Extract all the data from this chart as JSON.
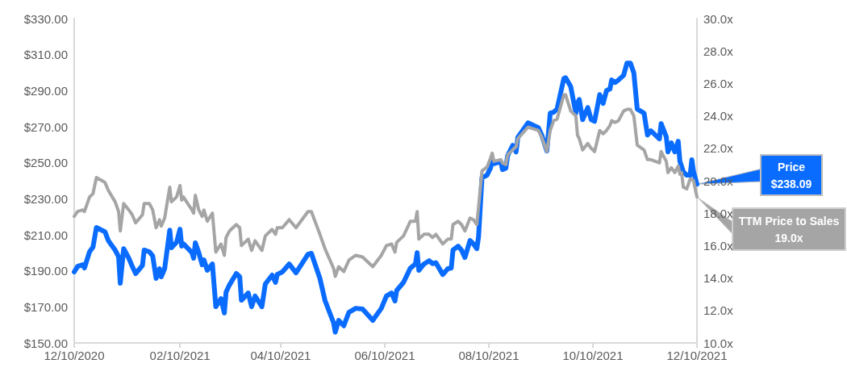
{
  "chart_data": {
    "type": "line",
    "x": [
      "2020-12-10",
      "2020-12-12",
      "2020-12-15",
      "2020-12-16",
      "2020-12-19",
      "2020-12-21",
      "2020-12-23",
      "2020-12-28",
      "2020-12-30",
      "2021-01-03",
      "2021-01-05",
      "2021-01-06",
      "2021-01-08",
      "2021-01-11",
      "2021-01-13",
      "2021-01-15",
      "2021-01-19",
      "2021-01-20",
      "2021-01-23",
      "2021-01-25",
      "2021-01-27",
      "2021-01-29",
      "2021-01-30",
      "2021-02-01",
      "2021-02-04",
      "2021-02-05",
      "2021-02-08",
      "2021-02-10",
      "2021-02-11",
      "2021-02-12",
      "2021-02-17",
      "2021-02-18",
      "2021-02-19",
      "2021-02-21",
      "2021-02-23",
      "2021-02-24",
      "2021-02-26",
      "2021-03-01",
      "2021-03-03",
      "2021-03-06",
      "2021-03-08",
      "2021-03-09",
      "2021-03-11",
      "2021-03-15",
      "2021-03-17",
      "2021-03-18",
      "2021-03-22",
      "2021-03-24",
      "2021-03-26",
      "2021-03-30",
      "2021-04-01",
      "2021-04-05",
      "2021-04-07",
      "2021-04-08",
      "2021-04-11",
      "2021-04-15",
      "2021-04-19",
      "2021-04-26",
      "2021-04-28",
      "2021-05-03",
      "2021-05-06",
      "2021-05-11",
      "2021-05-12",
      "2021-05-14",
      "2021-05-17",
      "2021-05-20",
      "2021-05-24",
      "2021-05-28",
      "2021-06-03",
      "2021-06-08",
      "2021-06-11",
      "2021-06-14",
      "2021-06-16",
      "2021-06-17",
      "2021-06-21",
      "2021-06-25",
      "2021-06-28",
      "2021-06-29",
      "2021-06-30",
      "2021-07-03",
      "2021-07-06",
      "2021-07-08",
      "2021-07-10",
      "2021-07-14",
      "2021-07-17",
      "2021-07-19",
      "2021-07-20",
      "2021-07-23",
      "2021-07-25",
      "2021-07-27",
      "2021-07-30",
      "2021-08-01",
      "2021-08-03",
      "2021-08-04",
      "2021-08-06",
      "2021-08-09",
      "2021-08-11",
      "2021-08-12",
      "2021-08-13",
      "2021-08-17",
      "2021-08-18",
      "2021-08-20",
      "2021-08-21",
      "2021-08-24",
      "2021-08-26",
      "2021-08-27",
      "2021-09-02",
      "2021-09-08",
      "2021-09-10",
      "2021-09-13",
      "2021-09-15",
      "2021-09-17",
      "2021-09-19",
      "2021-09-23",
      "2021-09-24",
      "2021-09-27",
      "2021-09-30",
      "2021-10-01",
      "2021-10-02",
      "2021-10-04",
      "2021-10-07",
      "2021-10-09",
      "2021-10-11",
      "2021-10-14",
      "2021-10-16",
      "2021-10-18",
      "2021-10-20",
      "2021-10-21",
      "2021-10-23",
      "2021-10-25",
      "2021-10-28",
      "2021-10-30",
      "2021-11-01",
      "2021-11-03",
      "2021-11-05",
      "2021-11-09",
      "2021-11-11",
      "2021-11-13",
      "2021-11-18",
      "2021-11-19",
      "2021-11-22",
      "2021-11-23",
      "2021-11-25",
      "2021-11-27",
      "2021-11-29",
      "2021-11-30",
      "2021-12-01",
      "2021-12-02",
      "2021-12-04",
      "2021-12-06",
      "2021-12-07",
      "2021-12-08",
      "2021-12-10"
    ],
    "series": [
      {
        "color": "#0a6cff",
        "values": [
          189.4,
          192.5,
          193.4,
          191.6,
          200.6,
          203.2,
          214.0,
          211.7,
          206.8,
          201.5,
          197.9,
          183.1,
          202.3,
          197.0,
          192.5,
          188.5,
          193.0,
          201.5,
          200.6,
          198.3,
          185.8,
          191.2,
          186.7,
          191.2,
          212.6,
          202.8,
          205.9,
          213.1,
          203.7,
          205.0,
          200.1,
          197.0,
          205.5,
          200.1,
          193.4,
          196.1,
          190.3,
          193.8,
          170.1,
          174.6,
          166.6,
          178.2,
          182.2,
          188.5,
          186.7,
          173.7,
          177.7,
          170.1,
          176.0,
          170.1,
          182.7,
          187.6,
          183.6,
          188.0,
          189.4,
          193.8,
          188.9,
          199.2,
          199.7,
          185.8,
          173.5,
          161.2,
          156.0,
          162.5,
          159.5,
          167.0,
          169.2,
          168.8,
          162.5,
          169.2,
          176.0,
          177.7,
          173.3,
          179.1,
          183.6,
          191.5,
          193.8,
          200.1,
          190.3,
          193.8,
          195.6,
          194.0,
          194.5,
          188.0,
          191.2,
          191.5,
          201.5,
          203.7,
          201.5,
          197.4,
          206.8,
          205.0,
          202.3,
          209.0,
          241.7,
          243.1,
          247.1,
          250.7,
          249.5,
          250.7,
          246.2,
          247.0,
          253.8,
          259.6,
          256.0,
          264.1,
          272.1,
          269.5,
          265.4,
          256.5,
          277.5,
          278.0,
          279.8,
          296.8,
          297.2,
          292.3,
          277.5,
          283.0,
          285.1,
          273.9,
          280.6,
          273.9,
          273.0,
          287.8,
          282.9,
          290.0,
          290.9,
          295.9,
          294.5,
          295.9,
          298.5,
          305.3,
          305.3,
          299.9,
          279.8,
          277.5,
          265.4,
          267.7,
          263.2,
          271.7,
          264.5,
          256.0,
          261.0,
          256.0,
          261.9,
          250.7,
          248.0,
          245.0,
          243.1,
          243.1,
          251.6,
          245.0,
          238.09
        ]
      },
      {
        "color": "#a5a5a5",
        "axis": "y2",
        "values": [
          17.8,
          18.1,
          18.2,
          18.1,
          19.0,
          19.2,
          20.2,
          19.9,
          19.4,
          18.7,
          18.1,
          16.9,
          18.6,
          18.2,
          17.9,
          17.4,
          17.9,
          18.6,
          18.6,
          18.2,
          17.1,
          17.6,
          17.2,
          17.7,
          19.6,
          18.7,
          19.0,
          19.7,
          18.8,
          19.0,
          18.2,
          18.0,
          19.1,
          18.2,
          17.8,
          18.2,
          17.5,
          18.0,
          15.6,
          16.1,
          15.4,
          16.5,
          16.9,
          17.3,
          17.1,
          16.0,
          16.4,
          15.7,
          16.3,
          15.7,
          16.6,
          17.0,
          16.7,
          17.1,
          17.1,
          17.6,
          17.1,
          18.1,
          18.1,
          16.7,
          15.8,
          14.6,
          14.1,
          14.7,
          14.4,
          15.1,
          15.4,
          15.3,
          14.7,
          15.4,
          16.0,
          16.1,
          15.6,
          16.2,
          16.6,
          17.5,
          17.5,
          18.1,
          16.4,
          16.7,
          16.7,
          16.5,
          16.7,
          16.1,
          16.4,
          16.4,
          17.3,
          17.5,
          17.3,
          16.9,
          17.7,
          17.6,
          17.3,
          18.4,
          20.6,
          20.85,
          21.4,
          21.7,
          21.2,
          21.3,
          21.1,
          21.0,
          21.6,
          21.9,
          22.1,
          22.6,
          23.3,
          23.1,
          22.7,
          21.8,
          23.1,
          23.7,
          23.8,
          25.3,
          25.3,
          24.3,
          24.0,
          22.8,
          22.6,
          21.9,
          22.3,
          22.0,
          21.8,
          23.1,
          22.9,
          23.1,
          23.4,
          23.7,
          23.6,
          23.7,
          24.3,
          24.4,
          24.4,
          24.0,
          22.2,
          21.9,
          21.3,
          21.3,
          21.1,
          21.8,
          21.2,
          20.5,
          20.8,
          20.5,
          20.9,
          20.4,
          20.5,
          19.6,
          19.5,
          20.1,
          20.1,
          20.0,
          19.0
        ]
      }
    ],
    "xlim": [
      "2020-12-10",
      "2021-12-10"
    ],
    "xticks": [
      {
        "value": "2020-12-10",
        "label": "12/10/2020"
      },
      {
        "value": "2021-02-10",
        "label": "02/10/2021"
      },
      {
        "value": "2021-04-10",
        "label": "04/10/2021"
      },
      {
        "value": "2021-06-10",
        "label": "06/10/2021"
      },
      {
        "value": "2021-08-10",
        "label": "08/10/2021"
      },
      {
        "value": "2021-10-10",
        "label": "10/10/2021"
      },
      {
        "value": "2021-12-10",
        "label": "12/10/2021"
      }
    ],
    "ylim": [
      150,
      330
    ],
    "yticks": [
      {
        "value": 150,
        "label": "$150.00"
      },
      {
        "value": 170,
        "label": "$170.00"
      },
      {
        "value": 190,
        "label": "$190.00"
      },
      {
        "value": 210,
        "label": "$210.00"
      },
      {
        "value": 230,
        "label": "$230.00"
      },
      {
        "value": 250,
        "label": "$250.00"
      },
      {
        "value": 270,
        "label": "$270.00"
      },
      {
        "value": 290,
        "label": "$290.00"
      },
      {
        "value": 310,
        "label": "$310.00"
      },
      {
        "value": 330,
        "label": "$330.00"
      }
    ],
    "y2lim": [
      10,
      30
    ],
    "y2ticks": [
      {
        "value": 10,
        "label": "10.0x"
      },
      {
        "value": 12,
        "label": "12.0x"
      },
      {
        "value": 14,
        "label": "14.0x"
      },
      {
        "value": 16,
        "label": "16.0x"
      },
      {
        "value": 18,
        "label": "18.0x"
      },
      {
        "value": 20,
        "label": "20.0x"
      },
      {
        "value": 22,
        "label": "22.0x"
      },
      {
        "value": 24,
        "label": "24.0x"
      },
      {
        "value": 26,
        "label": "26.0x"
      },
      {
        "value": 28,
        "label": "28.0x"
      },
      {
        "value": 30,
        "label": "30.0x"
      }
    ],
    "line_style": "solid",
    "annotations": [
      {
        "text": "Price\n$238.09",
        "x": "2021-12-10",
        "y": 238.09
      },
      "TTM Price to Sales\n19.0x"
    ]
  }
}
